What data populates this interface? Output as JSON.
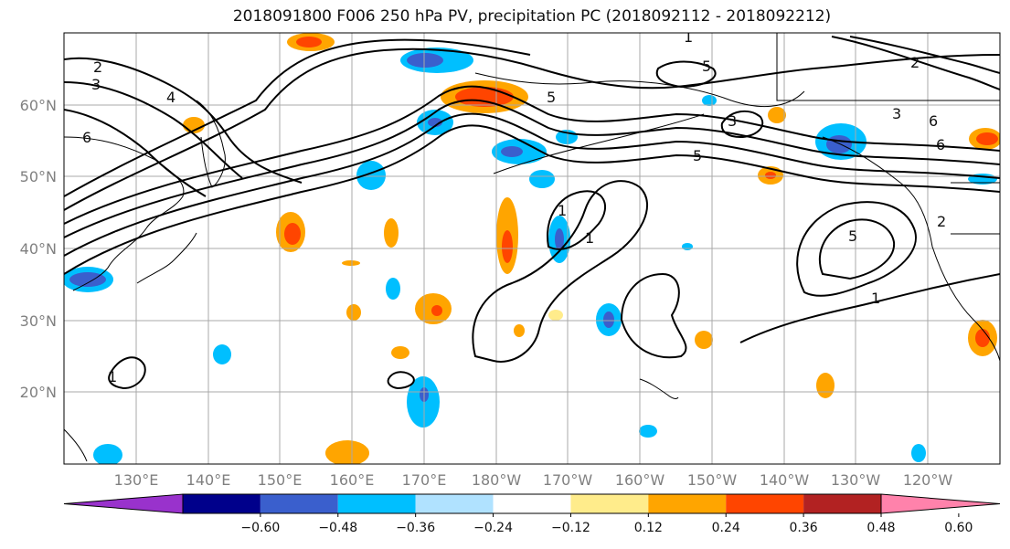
{
  "title": "2018091800 F006 250 hPa PV, precipitation PC (2018092112 - 2018092212)",
  "map": {
    "lat_labels": [
      "60°N",
      "50°N",
      "40°N",
      "30°N",
      "20°N"
    ],
    "lon_labels": [
      "130°E",
      "140°E",
      "150°E",
      "160°E",
      "170°E",
      "180°W",
      "170°W",
      "160°W",
      "150°W",
      "140°W",
      "130°W",
      "120°W"
    ],
    "contour_labels": [
      "1",
      "2",
      "3",
      "4",
      "5",
      "6",
      "1",
      "5",
      "6",
      "1",
      "3",
      "5",
      "6",
      "2",
      "5",
      "1",
      "1",
      "2",
      "3"
    ]
  },
  "colorbar": {
    "tick_labels": [
      "−0.60",
      "−0.48",
      "−0.36",
      "−0.24",
      "−0.12",
      "0.12",
      "0.24",
      "0.36",
      "0.48",
      "0.60"
    ],
    "colors": [
      "#9932cc",
      "#00008b",
      "#3a5fcd",
      "#00bfff",
      "#b0e2ff",
      "#ffffff",
      "#ffec8b",
      "#ffa500",
      "#ff4500",
      "#b22222",
      "#ff82ab"
    ]
  }
}
